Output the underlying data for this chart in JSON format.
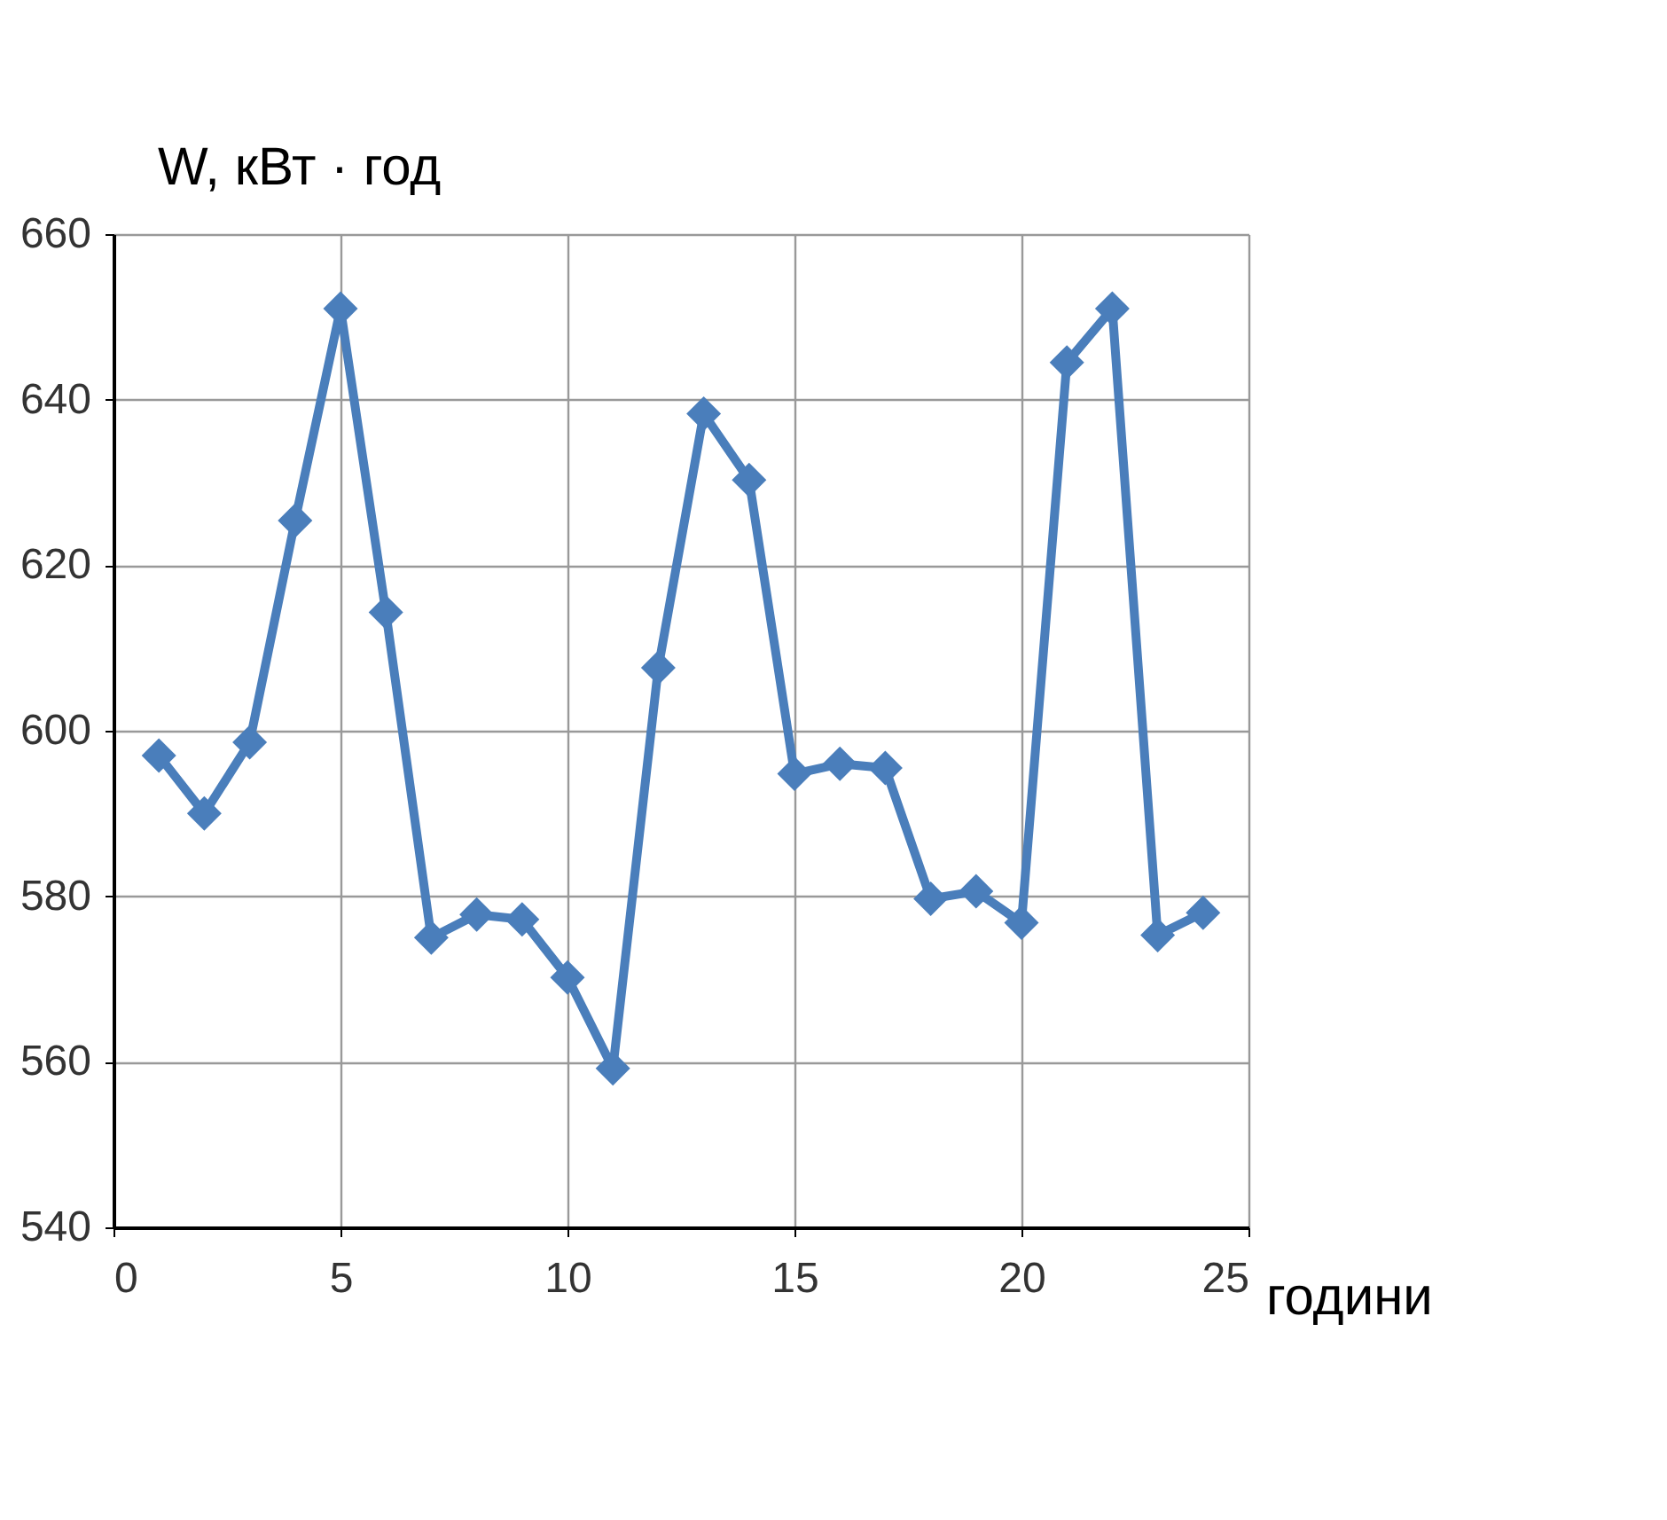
{
  "chart_data": {
    "type": "line",
    "xlabel": "години",
    "ylabel": "W, кВт · год",
    "x": [
      1,
      2,
      3,
      4,
      5,
      6,
      7,
      8,
      9,
      10,
      11,
      12,
      13,
      14,
      15,
      16,
      17,
      18,
      19,
      20,
      21,
      22,
      23,
      24
    ],
    "series": [
      {
        "color": "#4a7ebb",
        "values": [
          597,
          590,
          598.6,
          625.4,
          651,
          614.3,
          575,
          577.8,
          577.2,
          570.2,
          559.2,
          607.6,
          638.3,
          630.3,
          594.8,
          596,
          595.5,
          579.7,
          580.6,
          576.8,
          644.5,
          651,
          575.3,
          578
        ]
      }
    ],
    "xlim": [
      0,
      25
    ],
    "xticks": [
      0,
      5,
      10,
      15,
      20,
      25
    ],
    "ylim": [
      540,
      660
    ],
    "yticks": [
      540,
      560,
      580,
      600,
      620,
      640,
      660
    ],
    "grid": true,
    "marker": "diamond",
    "line_style": "solid",
    "legend": false
  }
}
